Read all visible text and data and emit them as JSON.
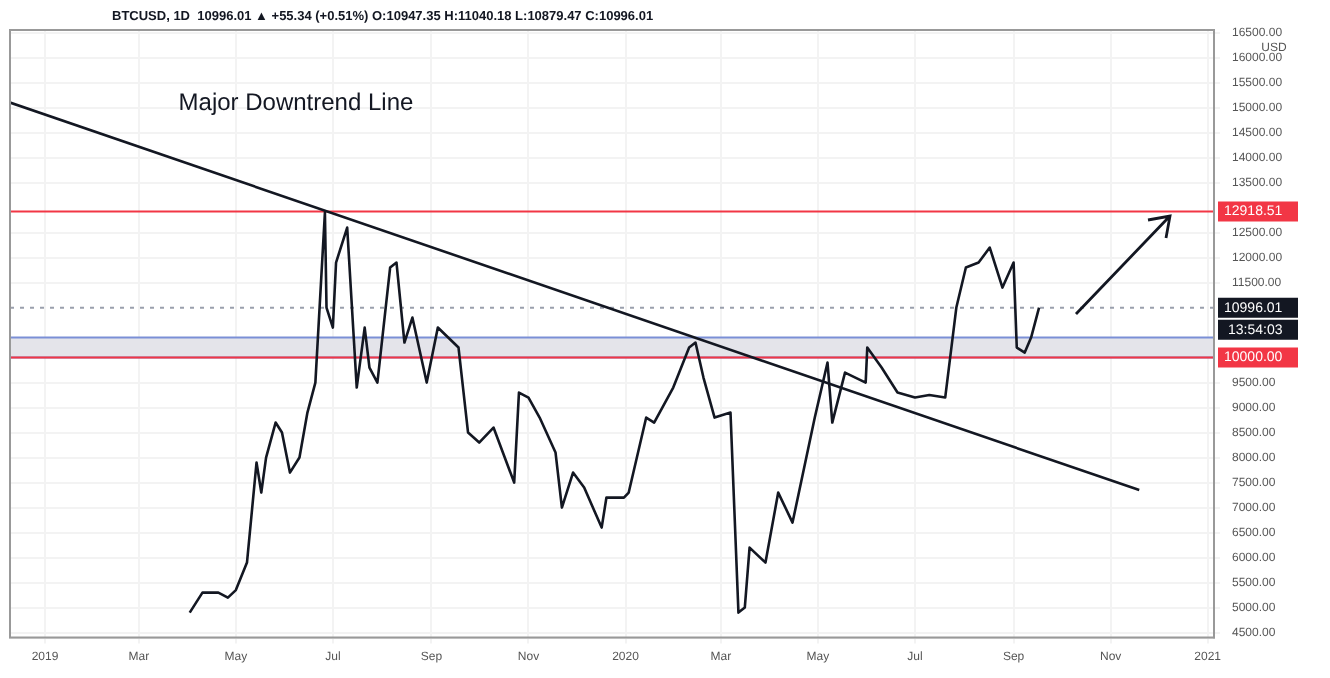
{
  "chart_data": {
    "type": "line",
    "title": "BTCUSD, 1D  10996.01 ▲ +55.34 (+0.51%) O:10947.35 H:11040.18 L:10879.47 C:10996.01",
    "ylabel": "USD",
    "annotations": [
      "Major Downtrend Line",
      "13:54:03"
    ],
    "xlim": [
      "2018-12-10",
      "2021-01-05"
    ],
    "xticks": [
      {
        "value": "2019-01-01",
        "label": "2019"
      },
      {
        "value": "2019-03-01",
        "label": "Mar"
      },
      {
        "value": "2019-05-01",
        "label": "May"
      },
      {
        "value": "2019-07-01",
        "label": "Jul"
      },
      {
        "value": "2019-09-01",
        "label": "Sep"
      },
      {
        "value": "2019-11-01",
        "label": "Nov"
      },
      {
        "value": "2020-01-01",
        "label": "2020"
      },
      {
        "value": "2020-03-01",
        "label": "Mar"
      },
      {
        "value": "2020-05-01",
        "label": "May"
      },
      {
        "value": "2020-07-01",
        "label": "Jul"
      },
      {
        "value": "2020-09-01",
        "label": "Sep"
      },
      {
        "value": "2020-11-01",
        "label": "Nov"
      },
      {
        "value": "2021-01-01",
        "label": "2021"
      }
    ],
    "ylim": [
      4400,
      16550
    ],
    "yticks": [
      {
        "value": 4500,
        "label": "4500.00"
      },
      {
        "value": 5000,
        "label": "5000.00"
      },
      {
        "value": 5500,
        "label": "5500.00"
      },
      {
        "value": 6000,
        "label": "6000.00"
      },
      {
        "value": 6500,
        "label": "6500.00"
      },
      {
        "value": 7000,
        "label": "7000.00"
      },
      {
        "value": 7500,
        "label": "7500.00"
      },
      {
        "value": 8000,
        "label": "8000.00"
      },
      {
        "value": 8500,
        "label": "8500.00"
      },
      {
        "value": 9000,
        "label": "9000.00"
      },
      {
        "value": 9500,
        "label": "9500.00"
      },
      {
        "value": 11500,
        "label": "11500.00"
      },
      {
        "value": 12000,
        "label": "12000.00"
      },
      {
        "value": 12500,
        "label": "12500.00"
      },
      {
        "value": 13500,
        "label": "13500.00"
      },
      {
        "value": 14000,
        "label": "14000.00"
      },
      {
        "value": 14500,
        "label": "14500.00"
      },
      {
        "value": 15000,
        "label": "15000.00"
      },
      {
        "value": 15500,
        "label": "15500.00"
      },
      {
        "value": 16000,
        "label": "16000.00"
      },
      {
        "value": 16500,
        "label": "16500.00"
      }
    ],
    "grid": true,
    "legend": false,
    "marker": "none",
    "line_style": "solid",
    "ref_lines": [
      {
        "axis": "y",
        "value": 12918.51,
        "label": "12918.51",
        "color": "#f23645",
        "line_style": "solid"
      },
      {
        "axis": "y",
        "value": 10000,
        "label": "10000.00",
        "color": "#f23645",
        "line_style": "solid"
      },
      {
        "axis": "y",
        "value": 10996.01,
        "label": "10996.01",
        "color": "#9aa0ad",
        "line_style": "dotted"
      }
    ],
    "bands": [
      {
        "axis": "y",
        "from": 10000,
        "to": 10400,
        "color": "#e4e4ea"
      }
    ],
    "series": [
      {
        "color": "#131722",
        "x": [
          "2019-04-02",
          "2019-04-10",
          "2019-04-20",
          "2019-04-26",
          "2019-05-01",
          "2019-05-08",
          "2019-05-14",
          "2019-05-17",
          "2019-05-20",
          "2019-05-26",
          "2019-05-30",
          "2019-06-04",
          "2019-06-10",
          "2019-06-15",
          "2019-06-20",
          "2019-06-26",
          "2019-06-27",
          "2019-07-01",
          "2019-07-03",
          "2019-07-10",
          "2019-07-16",
          "2019-07-21",
          "2019-07-24",
          "2019-07-29",
          "2019-08-06",
          "2019-08-10",
          "2019-08-15",
          "2019-08-20",
          "2019-08-29",
          "2019-09-05",
          "2019-09-18",
          "2019-09-24",
          "2019-10-01",
          "2019-10-10",
          "2019-10-23",
          "2019-10-26",
          "2019-11-01",
          "2019-11-08",
          "2019-11-18",
          "2019-11-22",
          "2019-11-29",
          "2019-12-06",
          "2019-12-17",
          "2019-12-20",
          "2019-12-31",
          "2020-01-03",
          "2020-01-14",
          "2020-01-19",
          "2020-01-31",
          "2020-02-10",
          "2020-02-14",
          "2020-02-19",
          "2020-02-26",
          "2020-03-07",
          "2020-03-12",
          "2020-03-16",
          "2020-03-19",
          "2020-03-29",
          "2020-04-06",
          "2020-04-15",
          "2020-04-29",
          "2020-05-07",
          "2020-05-10",
          "2020-05-18",
          "2020-05-31",
          "2020-06-01",
          "2020-06-10",
          "2020-06-20",
          "2020-07-01",
          "2020-07-10",
          "2020-07-20",
          "2020-07-27",
          "2020-08-02",
          "2020-08-10",
          "2020-08-17",
          "2020-08-25",
          "2020-09-01",
          "2020-09-03",
          "2020-09-08",
          "2020-09-12",
          "2020-09-17"
        ],
        "values": [
          4900,
          5300,
          5300,
          5200,
          5350,
          5900,
          7900,
          7300,
          8000,
          8700,
          8500,
          7700,
          8000,
          8900,
          9500,
          12900,
          11000,
          10600,
          11900,
          12600,
          9400,
          10600,
          9800,
          9500,
          11800,
          11900,
          10300,
          10800,
          9500,
          10600,
          10200,
          8500,
          8300,
          8600,
          7500,
          9300,
          9200,
          8800,
          8100,
          7000,
          7700,
          7400,
          6600,
          7200,
          7200,
          7300,
          8800,
          8700,
          9400,
          10200,
          10300,
          9600,
          8800,
          8900,
          4900,
          5000,
          6200,
          5900,
          7300,
          6700,
          8800,
          9900,
          8700,
          9700,
          9500,
          10200,
          9800,
          9300,
          9200,
          9250,
          9200,
          11000,
          11800,
          11900,
          12200,
          11400,
          11900,
          10200,
          10100,
          10400,
          11000
        ]
      },
      {
        "type": "line",
        "color": "#131722",
        "x": [
          "2018-12-10",
          "2020-11-19"
        ],
        "values": [
          15100,
          7350
        ]
      }
    ]
  }
}
